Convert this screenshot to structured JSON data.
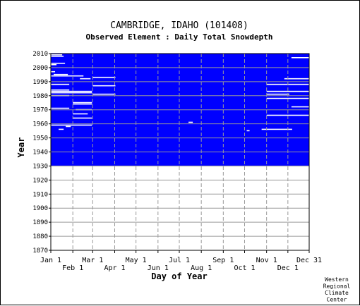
{
  "chart_data": {
    "type": "heatmap",
    "title": "CAMBRIDGE, IDAHO   (101408)",
    "subtitle": "Observed Element : Daily Total Snowdepth",
    "xlabel": "Day of Year",
    "ylabel": "Year",
    "xlim": [
      1,
      365
    ],
    "ylim": [
      1870,
      2010
    ],
    "record_start_year": 1930,
    "record_end_year": 2010,
    "data_color": "#0000ff",
    "missing_color": "#ffffff",
    "grid": true,
    "x_ticks": [
      {
        "label": "Jan 1",
        "day": 1,
        "row": "upper"
      },
      {
        "label": "Feb 1",
        "day": 32,
        "row": "lower"
      },
      {
        "label": "Mar 1",
        "day": 60,
        "row": "upper"
      },
      {
        "label": "Apr 1",
        "day": 91,
        "row": "lower"
      },
      {
        "label": "May 1",
        "day": 121,
        "row": "upper"
      },
      {
        "label": "Jun 1",
        "day": 152,
        "row": "lower"
      },
      {
        "label": "Jul 1",
        "day": 182,
        "row": "upper"
      },
      {
        "label": "Aug 1",
        "day": 213,
        "row": "lower"
      },
      {
        "label": "Sep 1",
        "day": 244,
        "row": "upper"
      },
      {
        "label": "Oct 1",
        "day": 274,
        "row": "lower"
      },
      {
        "label": "Nov 1",
        "day": 305,
        "row": "upper"
      },
      {
        "label": "Dec 1",
        "day": 335,
        "row": "lower"
      },
      {
        "label": "Dec 31",
        "day": 365,
        "row": "upper"
      }
    ],
    "y_ticks": [
      2010,
      2000,
      1990,
      1980,
      1970,
      1960,
      1950,
      1940,
      1930,
      1920,
      1910,
      1900,
      1890,
      1880,
      1870
    ],
    "missing_segments": [
      {
        "year": 2009,
        "day_start": 1,
        "day_end": 16
      },
      {
        "year": 2008,
        "day_start": 1,
        "day_end": 18
      },
      {
        "year": 2003,
        "day_start": 1,
        "day_end": 20
      },
      {
        "year": 2002,
        "day_start": 1,
        "day_end": 8
      },
      {
        "year": 1997,
        "day_start": 1,
        "day_end": 6
      },
      {
        "year": 1995,
        "day_start": 5,
        "day_end": 24
      },
      {
        "year": 1994,
        "day_start": 1,
        "day_end": 46
      },
      {
        "year": 1993,
        "day_start": 60,
        "day_end": 91
      },
      {
        "year": 1992,
        "day_start": 42,
        "day_end": 56
      },
      {
        "year": 1988,
        "day_start": 1,
        "day_end": 26
      },
      {
        "year": 1987,
        "day_start": 60,
        "day_end": 91
      },
      {
        "year": 1984,
        "day_start": 1,
        "day_end": 26
      },
      {
        "year": 1983,
        "day_start": 1,
        "day_end": 58
      },
      {
        "year": 1982,
        "day_start": 1,
        "day_end": 58
      },
      {
        "year": 1981,
        "day_start": 60,
        "day_end": 91
      },
      {
        "year": 1980,
        "day_start": 1,
        "day_end": 26
      },
      {
        "year": 1975,
        "day_start": 32,
        "day_end": 58
      },
      {
        "year": 1974,
        "day_start": 32,
        "day_end": 58
      },
      {
        "year": 1971,
        "day_start": 1,
        "day_end": 26
      },
      {
        "year": 1970,
        "day_start": 36,
        "day_end": 58
      },
      {
        "year": 1967,
        "day_start": 32,
        "day_end": 52
      },
      {
        "year": 1964,
        "day_start": 32,
        "day_end": 58
      },
      {
        "year": 1959,
        "day_start": 1,
        "day_end": 58
      },
      {
        "year": 1958,
        "day_start": 22,
        "day_end": 28
      },
      {
        "year": 1956,
        "day_start": 12,
        "day_end": 18
      },
      {
        "year": 1961,
        "day_start": 195,
        "day_end": 200
      },
      {
        "year": 1955,
        "day_start": 277,
        "day_end": 280
      },
      {
        "year": 1956,
        "day_start": 298,
        "day_end": 340
      },
      {
        "year": 1988,
        "day_start": 305,
        "day_end": 365
      },
      {
        "year": 1983,
        "day_start": 305,
        "day_end": 365
      },
      {
        "year": 1981,
        "day_start": 305,
        "day_end": 336
      },
      {
        "year": 1978,
        "day_start": 305,
        "day_end": 365
      },
      {
        "year": 1972,
        "day_start": 340,
        "day_end": 365
      },
      {
        "year": 1966,
        "day_start": 305,
        "day_end": 365
      },
      {
        "year": 1992,
        "day_start": 330,
        "day_end": 365
      },
      {
        "year": 2007,
        "day_start": 340,
        "day_end": 365
      }
    ],
    "credit": [
      "Western",
      "Regional",
      "Climate",
      "Center"
    ]
  }
}
